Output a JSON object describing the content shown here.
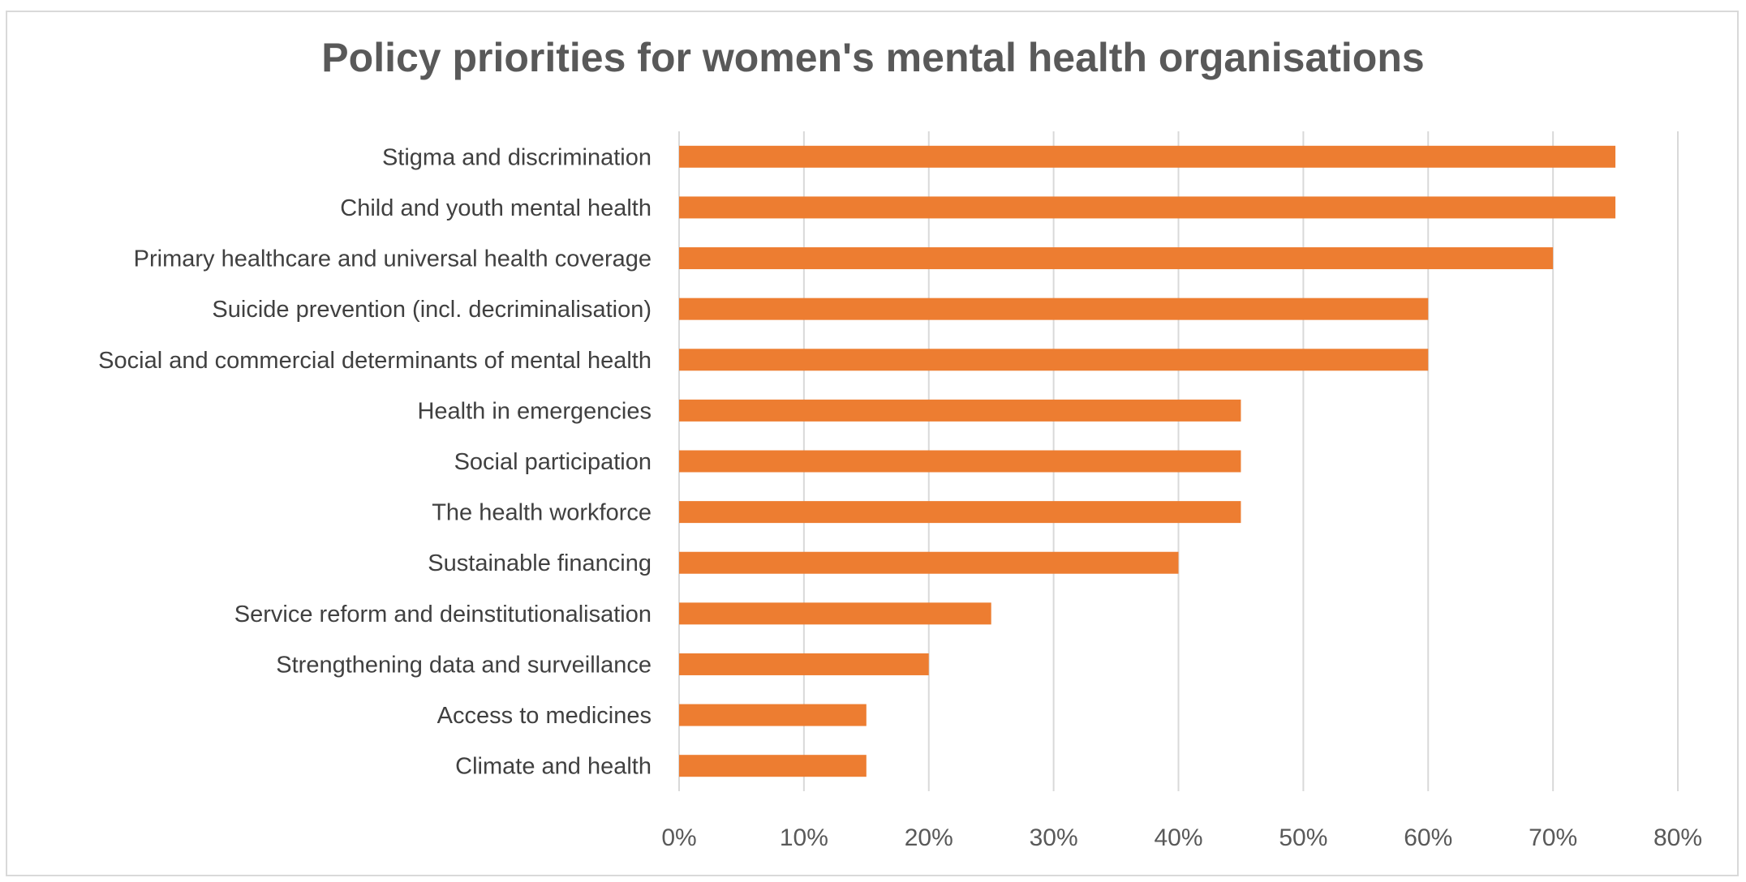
{
  "chart_data": {
    "type": "bar",
    "orientation": "horizontal",
    "title": "Policy priorities for women's mental health organisations",
    "xlabel": "",
    "ylabel": "",
    "xlim": [
      0,
      0.8
    ],
    "x_ticks": [
      "0%",
      "10%",
      "20%",
      "30%",
      "40%",
      "50%",
      "60%",
      "70%",
      "80%"
    ],
    "x_tick_values": [
      0,
      0.1,
      0.2,
      0.3,
      0.4,
      0.5,
      0.6,
      0.7,
      0.8
    ],
    "grid": "vertical",
    "legend": "none",
    "bar_color": "#ED7D31",
    "grid_color": "#d9d9d9",
    "label_color": "#404040",
    "tick_color": "#595959",
    "categories": [
      "Stigma and discrimination",
      "Child and youth mental health",
      "Primary healthcare and universal health coverage",
      "Suicide prevention (incl. decriminalisation)",
      "Social and commercial determinants of mental health",
      "Health in emergencies",
      "Social participation",
      "The health workforce",
      "Sustainable financing",
      "Service reform and deinstitutionalisation",
      "Strengthening data and surveillance",
      "Access to medicines",
      "Climate and health"
    ],
    "values": [
      0.75,
      0.75,
      0.7,
      0.6,
      0.6,
      0.45,
      0.45,
      0.45,
      0.4,
      0.25,
      0.2,
      0.15,
      0.15
    ]
  }
}
